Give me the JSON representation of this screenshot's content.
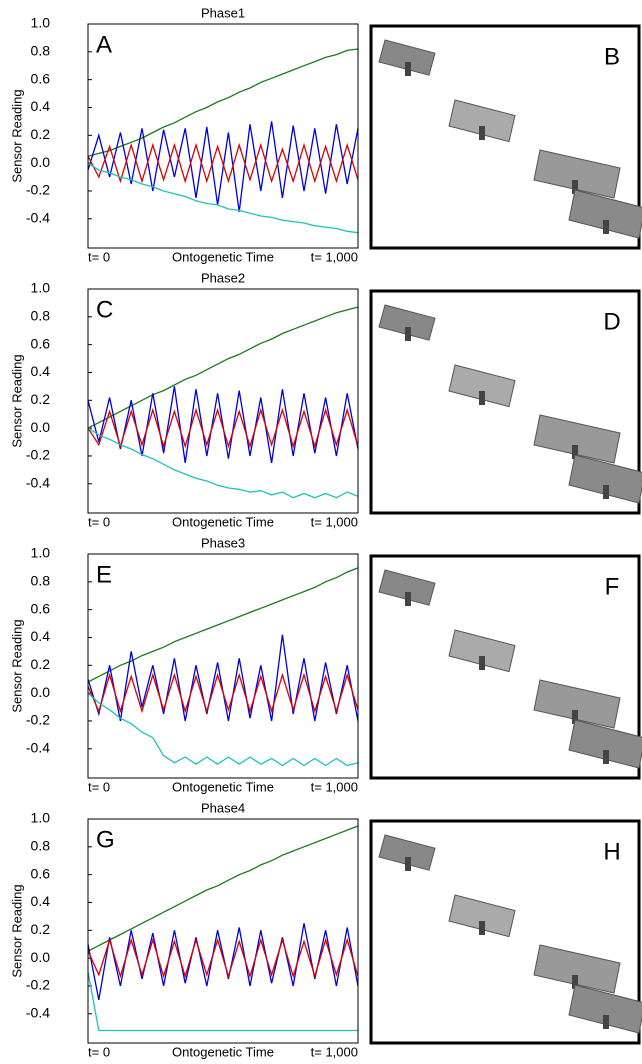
{
  "chart_data": [
    {
      "type": "line",
      "title": "Phase1",
      "panel_label": "A",
      "image_label": "B",
      "ylabel": "Sensor Reading",
      "xlabel": "Ontogenetic Time",
      "x": [
        0,
        40,
        80,
        120,
        160,
        200,
        240,
        280,
        320,
        360,
        400,
        440,
        480,
        520,
        560,
        600,
        640,
        680,
        720,
        760,
        800,
        840,
        880,
        920,
        960,
        1000
      ],
      "xlim": [
        0,
        1000
      ],
      "xticks": [
        {
          "value": 0,
          "label": "t= 0"
        },
        {
          "value": 1000,
          "label": "t= 1,000"
        }
      ],
      "ylim": [
        -0.61,
        1.0
      ],
      "yticks": [
        {
          "value": 1.0,
          "label": "1.0"
        },
        0.8,
        0.6,
        0.4,
        0.2,
        {
          "value": 0.0,
          "label": "0.0"
        },
        -0.2,
        -0.4
      ],
      "series": [
        {
          "color": "#1a7a1a",
          "values": [
            0.05,
            0.07,
            0.09,
            0.12,
            0.15,
            0.18,
            0.22,
            0.26,
            0.29,
            0.33,
            0.37,
            0.4,
            0.44,
            0.47,
            0.51,
            0.54,
            0.58,
            0.61,
            0.64,
            0.67,
            0.7,
            0.73,
            0.76,
            0.78,
            0.81,
            0.82
          ]
        },
        {
          "color": "#0000dd",
          "values": [
            -0.05,
            0.2,
            -0.1,
            0.22,
            -0.15,
            0.25,
            -0.2,
            0.24,
            -0.1,
            0.25,
            -0.25,
            0.26,
            -0.3,
            0.22,
            -0.35,
            0.28,
            -0.2,
            0.3,
            -0.25,
            0.27,
            -0.2,
            0.25,
            -0.22,
            0.28,
            -0.15,
            0.25
          ]
        },
        {
          "color": "#dd0000",
          "values": [
            0.05,
            -0.1,
            0.12,
            -0.13,
            0.13,
            -0.13,
            0.13,
            -0.12,
            0.13,
            -0.13,
            0.13,
            -0.13,
            0.12,
            -0.13,
            0.13,
            -0.12,
            0.13,
            -0.13,
            0.1,
            -0.13,
            0.13,
            -0.13,
            0.12,
            -0.13,
            0.13,
            -0.12
          ]
        },
        {
          "color": "#20c0c0",
          "values": [
            0,
            -0.05,
            -0.07,
            -0.1,
            -0.12,
            -0.15,
            -0.17,
            -0.2,
            -0.22,
            -0.24,
            -0.27,
            -0.29,
            -0.3,
            -0.33,
            -0.34,
            -0.36,
            -0.38,
            -0.39,
            -0.41,
            -0.42,
            -0.43,
            -0.45,
            -0.46,
            -0.47,
            -0.49,
            -0.5
          ]
        }
      ]
    },
    {
      "type": "line",
      "title": "Phase2",
      "panel_label": "C",
      "image_label": "D",
      "ylabel": "Sensor Reading",
      "xlabel": "Ontogenetic Time",
      "x": [
        0,
        40,
        80,
        120,
        160,
        200,
        240,
        280,
        320,
        360,
        400,
        440,
        480,
        520,
        560,
        600,
        640,
        680,
        720,
        760,
        800,
        840,
        880,
        920,
        960,
        1000
      ],
      "xlim": [
        0,
        1000
      ],
      "xticks": [
        {
          "value": 0,
          "label": "t= 0"
        },
        {
          "value": 1000,
          "label": "t= 1,000"
        }
      ],
      "ylim": [
        -0.61,
        1.0
      ],
      "yticks": [
        {
          "value": 1.0,
          "label": "1.0"
        },
        0.8,
        0.6,
        0.4,
        0.2,
        {
          "value": 0.0,
          "label": "0.0"
        },
        -0.2,
        -0.4
      ],
      "series": [
        {
          "color": "#1a7a1a",
          "values": [
            0.0,
            0.04,
            0.08,
            0.12,
            0.16,
            0.2,
            0.24,
            0.27,
            0.31,
            0.35,
            0.38,
            0.42,
            0.46,
            0.5,
            0.53,
            0.57,
            0.61,
            0.64,
            0.68,
            0.71,
            0.74,
            0.77,
            0.8,
            0.83,
            0.85,
            0.87
          ]
        },
        {
          "color": "#0000dd",
          "values": [
            0.2,
            -0.1,
            0.22,
            -0.15,
            0.2,
            -0.2,
            0.25,
            -0.18,
            0.3,
            -0.25,
            0.28,
            -0.2,
            0.25,
            -0.22,
            0.27,
            -0.2,
            0.22,
            -0.25,
            0.28,
            -0.2,
            0.25,
            -0.18,
            0.22,
            -0.2,
            0.25,
            -0.15
          ]
        },
        {
          "color": "#dd0000",
          "values": [
            0.0,
            -0.12,
            0.12,
            -0.13,
            0.12,
            -0.12,
            0.13,
            -0.13,
            0.12,
            -0.13,
            0.13,
            -0.12,
            0.13,
            -0.13,
            0.12,
            -0.13,
            0.13,
            -0.12,
            0.13,
            -0.13,
            0.12,
            -0.13,
            0.13,
            -0.12,
            0.13,
            -0.13
          ]
        },
        {
          "color": "#20c0c0",
          "values": [
            0,
            -0.05,
            -0.08,
            -0.12,
            -0.15,
            -0.19,
            -0.22,
            -0.26,
            -0.3,
            -0.33,
            -0.36,
            -0.38,
            -0.41,
            -0.43,
            -0.44,
            -0.46,
            -0.45,
            -0.48,
            -0.46,
            -0.5,
            -0.47,
            -0.5,
            -0.47,
            -0.5,
            -0.46,
            -0.49
          ]
        }
      ]
    },
    {
      "type": "line",
      "title": "Phase3",
      "panel_label": "E",
      "image_label": "F",
      "ylabel": "Sensor Reading",
      "xlabel": "Ontogenetic Time",
      "x": [
        0,
        40,
        80,
        120,
        160,
        200,
        240,
        280,
        320,
        360,
        400,
        440,
        480,
        520,
        560,
        600,
        640,
        680,
        720,
        760,
        800,
        840,
        880,
        920,
        960,
        1000
      ],
      "xlim": [
        0,
        1000
      ],
      "xticks": [
        {
          "value": 0,
          "label": "t= 0"
        },
        {
          "value": 1000,
          "label": "t= 1,000"
        }
      ],
      "ylim": [
        -0.61,
        1.0
      ],
      "yticks": [
        {
          "value": 1.0,
          "label": "1.0"
        },
        0.8,
        0.6,
        0.4,
        0.2,
        {
          "value": 0.0,
          "label": "0.0"
        },
        -0.2,
        -0.4
      ],
      "series": [
        {
          "color": "#1a7a1a",
          "values": [
            0.08,
            0.12,
            0.16,
            0.2,
            0.23,
            0.27,
            0.3,
            0.33,
            0.37,
            0.4,
            0.43,
            0.46,
            0.49,
            0.52,
            0.55,
            0.58,
            0.61,
            0.64,
            0.67,
            0.7,
            0.73,
            0.76,
            0.8,
            0.83,
            0.87,
            0.9
          ]
        },
        {
          "color": "#0000dd",
          "values": [
            0.1,
            -0.15,
            0.2,
            -0.2,
            0.3,
            -0.1,
            0.2,
            -0.15,
            0.25,
            -0.2,
            0.2,
            -0.15,
            0.22,
            -0.2,
            0.25,
            -0.18,
            0.2,
            -0.2,
            0.42,
            -0.15,
            0.25,
            -0.2,
            0.22,
            -0.15,
            0.2,
            -0.2
          ]
        },
        {
          "color": "#dd0000",
          "values": [
            0.05,
            -0.13,
            0.13,
            -0.13,
            0.12,
            -0.13,
            0.13,
            -0.12,
            0.13,
            -0.13,
            0.12,
            -0.13,
            0.13,
            -0.12,
            0.13,
            -0.13,
            0.12,
            -0.13,
            0.13,
            -0.12,
            0.13,
            -0.13,
            0.12,
            -0.13,
            0.13,
            -0.12
          ]
        },
        {
          "color": "#20c0c0",
          "values": [
            0,
            -0.07,
            -0.12,
            -0.18,
            -0.22,
            -0.28,
            -0.32,
            -0.45,
            -0.5,
            -0.46,
            -0.51,
            -0.46,
            -0.51,
            -0.46,
            -0.51,
            -0.46,
            -0.51,
            -0.47,
            -0.52,
            -0.47,
            -0.52,
            -0.47,
            -0.52,
            -0.47,
            -0.52,
            -0.5
          ]
        }
      ]
    },
    {
      "type": "line",
      "title": "Phase4",
      "panel_label": "G",
      "image_label": "H",
      "ylabel": "Sensor Reading",
      "xlabel": "Ontogenetic Time",
      "x": [
        0,
        40,
        80,
        120,
        160,
        200,
        240,
        280,
        320,
        360,
        400,
        440,
        480,
        520,
        560,
        600,
        640,
        680,
        720,
        760,
        800,
        840,
        880,
        920,
        960,
        1000
      ],
      "xlim": [
        0,
        1000
      ],
      "xticks": [
        {
          "value": 0,
          "label": "t= 0"
        },
        {
          "value": 1000,
          "label": "t= 1,000"
        }
      ],
      "ylim": [
        -0.61,
        1.0
      ],
      "yticks": [
        {
          "value": 1.0,
          "label": "1.0"
        },
        0.8,
        0.6,
        0.4,
        0.2,
        {
          "value": 0.0,
          "label": "0.0"
        },
        -0.2,
        -0.4
      ],
      "series": [
        {
          "color": "#1a7a1a",
          "values": [
            0.05,
            0.09,
            0.13,
            0.17,
            0.21,
            0.25,
            0.29,
            0.33,
            0.37,
            0.41,
            0.45,
            0.49,
            0.52,
            0.56,
            0.6,
            0.63,
            0.67,
            0.7,
            0.74,
            0.77,
            0.8,
            0.83,
            0.86,
            0.89,
            0.92,
            0.95
          ]
        },
        {
          "color": "#0000dd",
          "values": [
            0.1,
            -0.3,
            0.15,
            -0.2,
            0.2,
            -0.15,
            0.18,
            -0.2,
            0.2,
            -0.18,
            0.15,
            -0.2,
            0.2,
            -0.15,
            0.22,
            -0.2,
            0.2,
            -0.18,
            0.15,
            -0.2,
            0.25,
            -0.15,
            0.2,
            -0.2,
            0.22,
            -0.2
          ]
        },
        {
          "color": "#dd0000",
          "values": [
            0.05,
            -0.12,
            0.13,
            -0.13,
            0.13,
            -0.12,
            0.13,
            -0.13,
            0.12,
            -0.13,
            0.13,
            -0.12,
            0.13,
            -0.13,
            0.12,
            -0.13,
            0.13,
            -0.12,
            0.13,
            -0.13,
            0.12,
            -0.13,
            0.13,
            -0.12,
            0.13,
            -0.13
          ]
        },
        {
          "color": "#20c0c0",
          "values": [
            -0.1,
            -0.52,
            -0.52,
            -0.52,
            -0.52,
            -0.52,
            -0.52,
            -0.52,
            -0.52,
            -0.52,
            -0.52,
            -0.52,
            -0.52,
            -0.52,
            -0.52,
            -0.52,
            -0.52,
            -0.52,
            -0.52,
            -0.52,
            -0.52,
            -0.52,
            -0.52,
            -0.52,
            -0.52,
            -0.52
          ]
        }
      ]
    }
  ]
}
